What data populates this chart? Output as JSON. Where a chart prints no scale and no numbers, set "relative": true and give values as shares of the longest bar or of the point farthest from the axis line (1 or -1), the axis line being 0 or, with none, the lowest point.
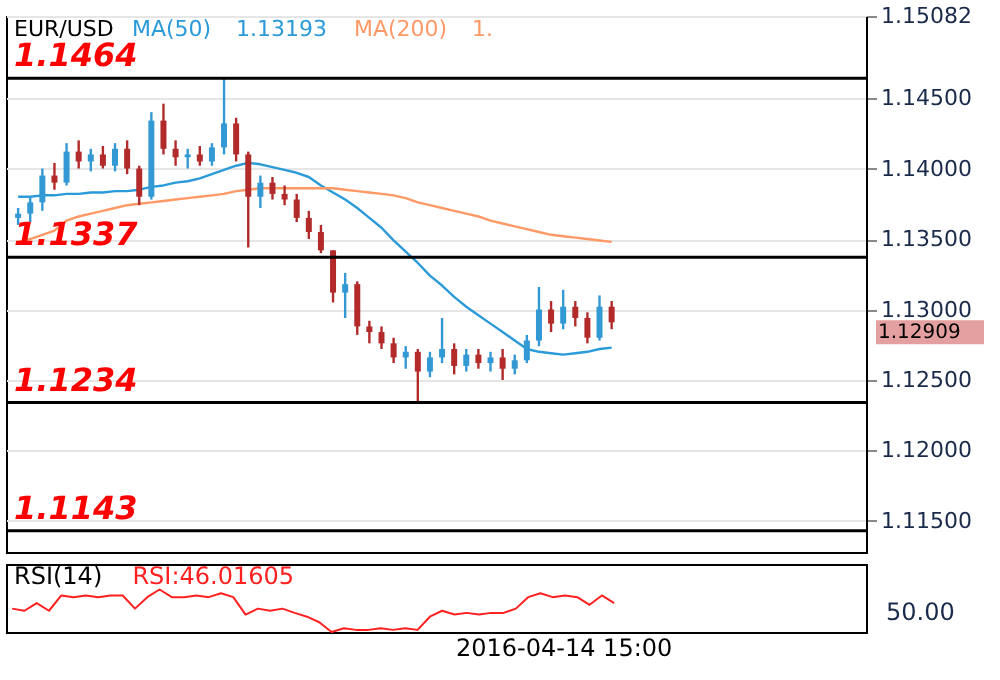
{
  "chart_data": [
    {
      "type": "candlestick",
      "title": "EUR/USD",
      "categories": [
        null,
        null,
        null,
        null,
        null,
        null,
        null,
        null,
        null,
        null,
        null,
        null,
        null,
        null,
        null,
        null,
        null,
        null,
        null,
        null,
        null,
        null,
        null,
        null,
        null,
        null,
        null,
        null,
        null,
        null,
        null,
        null,
        null,
        null,
        null,
        null,
        null,
        null,
        null,
        null,
        null,
        null,
        null,
        null,
        null,
        null,
        null,
        null,
        null,
        null,
        null,
        null,
        null,
        null,
        null,
        null,
        null,
        null,
        null,
        null,
        null,
        null,
        null,
        null,
        null,
        null,
        null,
        null,
        null,
        null
      ],
      "ohlc": [
        [
          1.1365,
          1.1372,
          1.136,
          1.1368
        ],
        [
          1.1368,
          1.138,
          1.1362,
          1.1376
        ],
        [
          1.1376,
          1.14,
          1.137,
          1.1395
        ],
        [
          1.1395,
          1.1404,
          1.1385,
          1.139
        ],
        [
          1.139,
          1.1418,
          1.1388,
          1.1412
        ],
        [
          1.1412,
          1.142,
          1.14,
          1.1405
        ],
        [
          1.1405,
          1.1414,
          1.1398,
          1.141
        ],
        [
          1.141,
          1.1416,
          1.14,
          1.1402
        ],
        [
          1.1402,
          1.1418,
          1.1398,
          1.1414
        ],
        [
          1.1414,
          1.142,
          1.1396,
          1.14
        ],
        [
          1.14,
          1.1402,
          1.1374,
          1.138
        ],
        [
          1.138,
          1.144,
          1.1378,
          1.1434
        ],
        [
          1.1434,
          1.1446,
          1.141,
          1.1414
        ],
        [
          1.1414,
          1.142,
          1.1402,
          1.1408
        ],
        [
          1.1408,
          1.1414,
          1.14,
          1.141
        ],
        [
          1.141,
          1.1416,
          1.1402,
          1.1405
        ],
        [
          1.1405,
          1.1418,
          1.1402,
          1.1415
        ],
        [
          1.1415,
          1.1464,
          1.141,
          1.1432
        ],
        [
          1.1432,
          1.1436,
          1.1405,
          1.141
        ],
        [
          1.141,
          1.1412,
          1.1344,
          1.138
        ],
        [
          1.138,
          1.1395,
          1.1372,
          1.139
        ],
        [
          1.139,
          1.1394,
          1.1378,
          1.1382
        ],
        [
          1.1382,
          1.1388,
          1.1374,
          1.1378
        ],
        [
          1.1378,
          1.1382,
          1.1362,
          1.1365
        ],
        [
          1.1365,
          1.137,
          1.135,
          1.1355
        ],
        [
          1.1355,
          1.136,
          1.134,
          1.1342
        ],
        [
          1.1342,
          1.1342,
          1.1305,
          1.1312
        ],
        [
          1.1312,
          1.1326,
          1.1294,
          1.1318
        ],
        [
          1.1318,
          1.132,
          1.1282,
          1.1288
        ],
        [
          1.1288,
          1.1292,
          1.1276,
          1.1284
        ],
        [
          1.1284,
          1.1288,
          1.1272,
          1.1276
        ],
        [
          1.1276,
          1.128,
          1.1262,
          1.1266
        ],
        [
          1.1266,
          1.1274,
          1.1258,
          1.127
        ],
        [
          1.127,
          1.1272,
          1.1233,
          1.1256
        ],
        [
          1.1256,
          1.127,
          1.1252,
          1.1266
        ],
        [
          1.1266,
          1.1294,
          1.1262,
          1.1272
        ],
        [
          1.1272,
          1.1276,
          1.1254,
          1.126
        ],
        [
          1.126,
          1.1272,
          1.1256,
          1.1268
        ],
        [
          1.1268,
          1.1272,
          1.1258,
          1.1262
        ],
        [
          1.1262,
          1.127,
          1.1256,
          1.1266
        ],
        [
          1.1266,
          1.1272,
          1.125,
          1.1258
        ],
        [
          1.1258,
          1.1268,
          1.1254,
          1.1264
        ],
        [
          1.1264,
          1.1282,
          1.1262,
          1.1278
        ],
        [
          1.1278,
          1.1316,
          1.1274,
          1.13
        ],
        [
          1.13,
          1.1306,
          1.1284,
          1.129
        ],
        [
          1.129,
          1.1314,
          1.1286,
          1.1302
        ],
        [
          1.1302,
          1.1306,
          1.1288,
          1.1294
        ],
        [
          1.1294,
          1.1298,
          1.1276,
          1.128
        ],
        [
          1.128,
          1.131,
          1.1278,
          1.1302
        ],
        [
          1.1302,
          1.1306,
          1.1286,
          1.12909
        ],
        null,
        null,
        null,
        null,
        null,
        null,
        null,
        null,
        null,
        null,
        null,
        null,
        null,
        null,
        null,
        null,
        null,
        null,
        null,
        null
      ],
      "colors": [
        "#3399d4",
        "#3399d4",
        "#3399d4",
        "#b22a2a",
        "#3399d4",
        "#b22a2a",
        "#3399d4",
        "#b22a2a",
        "#3399d4",
        "#b22a2a",
        "#b22a2a",
        "#3399d4",
        "#b22a2a",
        "#b22a2a",
        "#3399d4",
        "#b22a2a",
        "#3399d4",
        "#3399d4",
        "#b22a2a",
        "#b22a2a",
        "#3399d4",
        "#b22a2a",
        "#b22a2a",
        "#b22a2a",
        "#b22a2a",
        "#b22a2a",
        "#b22a2a",
        "#3399d4",
        "#b22a2a",
        "#b22a2a",
        "#b22a2a",
        "#b22a2a",
        "#3399d4",
        "#b22a2a",
        "#3399d4",
        "#3399d4",
        "#b22a2a",
        "#3399d4",
        "#b22a2a",
        "#3399d4",
        "#b22a2a",
        "#3399d4",
        "#3399d4",
        "#3399d4",
        "#b22a2a",
        "#3399d4",
        "#b22a2a",
        "#b22a2a",
        "#3399d4",
        "#b22a2a",
        null,
        null,
        null,
        null,
        null,
        null,
        null,
        null,
        null,
        null,
        null,
        null,
        null,
        null,
        null,
        null,
        null,
        null,
        null,
        null
      ],
      "series": [
        {
          "name": "MA(50)",
          "type": "line",
          "color": "#2b9ad8",
          "values": [
            1.138,
            1.138,
            1.1381,
            1.1381,
            1.1382,
            1.1382,
            1.1383,
            1.1383,
            1.1384,
            1.1384,
            1.1385,
            1.1387,
            1.1388,
            1.139,
            1.1391,
            1.1393,
            1.1396,
            1.1399,
            1.1402,
            1.1404,
            1.1403,
            1.1401,
            1.1399,
            1.1397,
            1.1394,
            1.1388,
            1.1383,
            1.1378,
            1.1372,
            1.1365,
            1.1358,
            1.1349,
            1.1341,
            1.1333,
            1.1324,
            1.1317,
            1.1309,
            1.1302,
            1.1296,
            1.129,
            1.1284,
            1.1278,
            1.1272,
            1.127,
            1.1269,
            1.1268,
            1.1269,
            1.127,
            1.1272,
            1.1273,
            null,
            null,
            null,
            null,
            null,
            null,
            null,
            null,
            null,
            null,
            null,
            null,
            null,
            null,
            null,
            null,
            null,
            null,
            null,
            null
          ]
        },
        {
          "name": "MA(200)",
          "type": "line",
          "color": "#ff9966",
          "values": [
            1.1348,
            1.135,
            1.1353,
            1.1356,
            1.1363,
            1.1366,
            1.1368,
            1.137,
            1.1372,
            1.1374,
            1.1375,
            1.1376,
            1.1377,
            1.1378,
            1.1379,
            1.138,
            1.1381,
            1.1382,
            1.1384,
            1.1385,
            1.1386,
            1.1386,
            1.1386,
            1.1386,
            1.1386,
            1.1386,
            1.1386,
            1.1385,
            1.1384,
            1.1383,
            1.1382,
            1.1381,
            1.1379,
            1.1376,
            1.1374,
            1.1372,
            1.137,
            1.1368,
            1.1366,
            1.1363,
            1.1361,
            1.1359,
            1.1357,
            1.1355,
            1.1353,
            1.1352,
            1.1351,
            1.135,
            1.1349,
            1.1348,
            null,
            null,
            null,
            null,
            null,
            null,
            null,
            null,
            null,
            null,
            null,
            null,
            null,
            null,
            null,
            null,
            null,
            null,
            null,
            null
          ]
        }
      ],
      "ylim": [
        1.1128,
        1.15082
      ],
      "yticks": [
        {
          "value": 1.115,
          "label": "1.11500"
        },
        {
          "value": 1.12,
          "label": "1.12000"
        },
        {
          "value": 1.125,
          "label": "1.12500"
        },
        {
          "value": 1.13,
          "label": "1.13000"
        },
        {
          "value": 1.135,
          "label": "1.13500"
        },
        {
          "value": 1.14,
          "label": "1.14000"
        },
        {
          "value": 1.145,
          "label": "1.14500"
        },
        1.15082
      ],
      "ref_lines": [
        {
          "axis": "y",
          "value": 1.1464,
          "label": "1.1464",
          "color": "#000000"
        },
        {
          "axis": "y",
          "value": 1.1337,
          "label": "1.1337",
          "color": "#000000"
        },
        {
          "axis": "y",
          "value": 1.1234,
          "label": "1.1234",
          "color": "#000000"
        },
        {
          "axis": "y",
          "value": 1.1143,
          "label": "1.1143",
          "color": "#000000"
        }
      ],
      "annotations": [
        "1.13193",
        "1.",
        "1.12909"
      ],
      "grid": "y",
      "legend": "top left",
      "tick_labels": "y"
    },
    {
      "type": "line",
      "title": "RSI(14)",
      "relative": true,
      "categories": [
        null,
        null,
        null,
        null,
        null,
        null,
        null,
        null,
        null,
        null,
        null,
        null,
        null,
        null,
        null,
        null,
        null,
        null,
        null,
        null,
        null,
        null,
        null,
        null,
        null,
        null,
        null,
        null,
        null,
        null,
        null,
        null,
        null,
        null,
        null,
        null,
        null,
        null,
        null,
        null,
        null,
        null,
        null,
        null,
        null,
        null,
        null,
        null,
        null,
        null,
        null,
        null,
        null,
        null,
        null,
        null,
        null,
        null,
        null,
        null,
        null,
        null,
        null,
        null,
        null,
        null,
        null,
        null,
        null,
        null
      ],
      "series": [
        {
          "color": "#ff2020",
          "values": [
            0.55,
            0.5,
            0.68,
            0.5,
            0.86,
            0.82,
            0.86,
            0.82,
            0.86,
            0.86,
            0.55,
            0.82,
            1,
            0.82,
            0.82,
            0.86,
            0.82,
            0.91,
            0.82,
            0.41,
            0.55,
            0.5,
            0.55,
            0.45,
            0.36,
            0.23,
            0,
            0.09,
            0.05,
            0.05,
            0.09,
            0.05,
            0.09,
            0.05,
            0.36,
            0.5,
            0.41,
            0.45,
            0.41,
            0.45,
            0.45,
            0.55,
            0.82,
            0.91,
            0.82,
            0.86,
            0.82,
            0.64,
            0.86,
            0.68,
            null,
            null,
            null,
            null,
            null,
            null,
            null,
            null,
            null,
            null,
            null,
            null,
            null,
            null,
            null,
            null,
            null,
            null,
            null,
            null
          ]
        }
      ],
      "annotations": [
        "RSI:46.01605",
        "50.00",
        "2016-04-14 15:00"
      ],
      "tick_labels": false
    }
  ]
}
